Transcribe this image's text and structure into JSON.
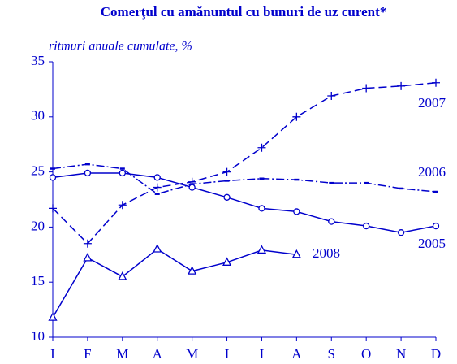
{
  "chart_data": {
    "type": "line",
    "title": "Comerţul cu amănuntul cu bunuri de uz curent*",
    "subtitle": "ritmuri anuale cumulate, %",
    "categories": [
      "I",
      "F",
      "M",
      "A",
      "M",
      "I",
      "I",
      "A",
      "S",
      "O",
      "N",
      "D"
    ],
    "ylim": [
      10,
      35
    ],
    "yticks": [
      10,
      15,
      20,
      25,
      30,
      35
    ],
    "series": [
      {
        "name": "2007",
        "color": "#0000cc",
        "marker": "plus",
        "dash": "10 5",
        "values": [
          21.7,
          18.5,
          22.0,
          23.6,
          24.1,
          25.0,
          27.2,
          30.0,
          31.9,
          32.6,
          32.8,
          33.1
        ]
      },
      {
        "name": "2006",
        "color": "#0000cc",
        "marker": "dash",
        "dash": "10 3 2 3",
        "values": [
          25.3,
          25.7,
          25.3,
          23.0,
          23.9,
          24.2,
          24.4,
          24.3,
          24.0,
          24.0,
          23.5,
          23.2
        ]
      },
      {
        "name": "2005",
        "color": "#0000cc",
        "marker": "circle",
        "dash": "none",
        "values": [
          24.5,
          24.9,
          24.9,
          24.5,
          23.6,
          22.7,
          21.7,
          21.4,
          20.5,
          20.1,
          19.5,
          20.1
        ]
      },
      {
        "name": "2008",
        "color": "#0000cc",
        "marker": "triangle",
        "dash": "none",
        "values": [
          11.8,
          17.2,
          15.5,
          18.0,
          16.0,
          16.8,
          17.9,
          17.5,
          null,
          null,
          null,
          null
        ]
      }
    ]
  }
}
